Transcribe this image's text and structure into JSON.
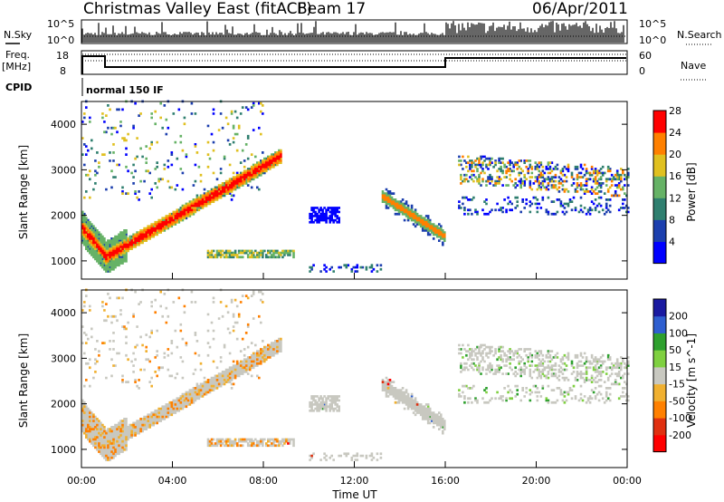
{
  "header": {
    "title": "Christmas Valley East (fitACF)",
    "beam": "Beam 17",
    "date": "06/Apr/2011"
  },
  "status_panels": {
    "nsky": {
      "label": "N.Sky",
      "right_label": "N.Search",
      "tick_top": "10^5",
      "tick_bottom": "10^0",
      "right_tick_top": "10^5",
      "right_tick_bottom": "10^0"
    },
    "freq": {
      "label": "Freq.",
      "unit": "[MHz]",
      "right_label": "Nave",
      "tick_top": "18",
      "tick_bottom": "8",
      "right_tick_top": "60",
      "right_tick_bottom": "0"
    },
    "cpid": {
      "label": "CPID",
      "value": "normal 150 IF"
    }
  },
  "chart_data": [
    {
      "type": "heatmap",
      "name": "power",
      "ylabel": "Slant Range [km]",
      "yticks": [
        "1000",
        "2000",
        "3000",
        "4000"
      ],
      "ylim": [
        600,
        4500
      ],
      "xlim": [
        0,
        24
      ],
      "colorbar": {
        "label": "Power [dB]",
        "ticks": [
          "4",
          "8",
          "12",
          "16",
          "20",
          "24",
          "28"
        ],
        "colors": [
          "#0000ff",
          "#1c3fae",
          "#2f7f6f",
          "#66b266",
          "#e0c020",
          "#ff8000",
          "#ff0000"
        ]
      },
      "features": [
        {
          "label": "descending-ascending band",
          "start_ut": 0.0,
          "end_ut": 8.8,
          "start_range_km": 1700,
          "min_range_km": 1000,
          "end_range_km": 3300
        },
        {
          "label": "mid-range band",
          "start_ut": 5.5,
          "end_ut": 9.2,
          "range_km": 1150
        },
        {
          "label": "afternoon band",
          "start_ut": 13.2,
          "end_ut": 16.0,
          "start_range_km": 2400,
          "end_range_km": 1500
        },
        {
          "label": "evening patches",
          "start_ut": 16.5,
          "end_ut": 24.0,
          "range_km": 2700
        }
      ]
    },
    {
      "type": "heatmap",
      "name": "velocity",
      "ylabel": "Slant Range [km]",
      "yticks": [
        "1000",
        "2000",
        "3000",
        "4000"
      ],
      "ylim": [
        600,
        4500
      ],
      "xlim": [
        0,
        24
      ],
      "xlabel": "Time UT",
      "xticks": [
        "00:00",
        "04:00",
        "08:00",
        "12:00",
        "16:00",
        "20:00",
        "00:00"
      ],
      "colorbar": {
        "label": "Velocity [m s^-1]",
        "ticks": [
          "200",
          "100",
          "50",
          "15",
          "-15",
          "-50",
          "-100",
          "-200"
        ],
        "colors": [
          "#1a1aa0",
          "#2f5fd0",
          "#2ea02e",
          "#7fd040",
          "#c8c8c0",
          "#f0b030",
          "#ff8000",
          "#e03010",
          "#ff0000"
        ]
      }
    }
  ]
}
